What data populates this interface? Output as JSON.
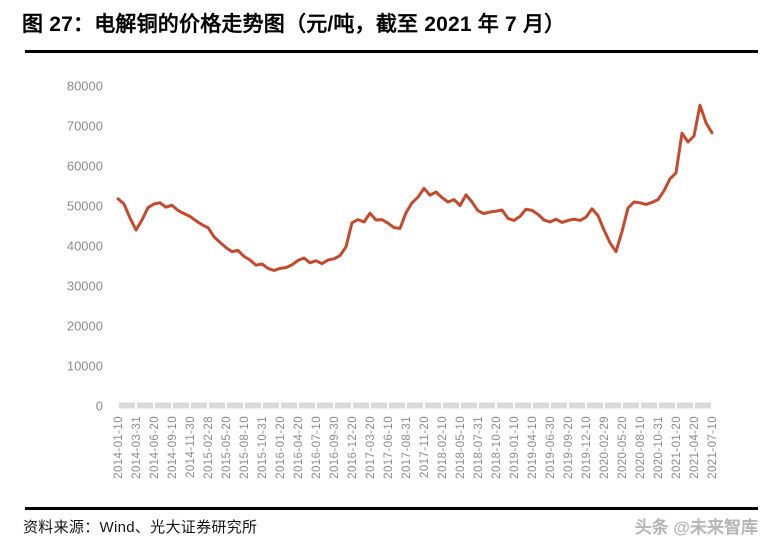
{
  "header": {
    "title": "图 27：电解铜的价格走势图（元/吨，截至 2021 年 7 月）"
  },
  "chart_data": {
    "type": "line",
    "title": "电解铜的价格走势图",
    "unit": "元/吨",
    "legend": "none",
    "grid": false,
    "ylim": [
      0,
      80000
    ],
    "y_ticks": [
      80000,
      70000,
      60000,
      50000,
      40000,
      30000,
      20000,
      10000,
      0
    ],
    "x_tick_labels": [
      "2014-01-10",
      "2014-03-31",
      "2014-06-20",
      "2014-09-10",
      "2014-11-30",
      "2015-02-28",
      "2015-05-20",
      "2015-08-10",
      "2015-10-31",
      "2016-01-20",
      "2016-04-20",
      "2016-07-10",
      "2016-09-30",
      "2016-12-20",
      "2017-03-20",
      "2017-06-10",
      "2017-08-31",
      "2017-11-20",
      "2018-02-10",
      "2018-05-10",
      "2018-07-31",
      "2018-10-20",
      "2019-01-10",
      "2019-04-10",
      "2019-06-30",
      "2019-09-20",
      "2019-12-10",
      "2020-02-29",
      "2020-05-20",
      "2020-08-10",
      "2020-10-31",
      "2021-01-20",
      "2021-04-20",
      "2021-07-10"
    ],
    "points_per_tick_interval": 3,
    "x_note": "values are evenly spaced in time from 2014-01-10 to 2021-07-10; every 3rd point aligns with an x tick label",
    "values": [
      51800,
      50500,
      47000,
      44000,
      46500,
      49600,
      50500,
      50800,
      49700,
      50200,
      48900,
      48100,
      47400,
      46300,
      45300,
      44600,
      42300,
      40900,
      39600,
      38600,
      38900,
      37400,
      36500,
      35200,
      35500,
      34400,
      33900,
      34400,
      34600,
      35300,
      36400,
      37000,
      35800,
      36300,
      35600,
      36500,
      36800,
      37600,
      39800,
      45800,
      46600,
      46000,
      48200,
      46500,
      46600,
      45700,
      44600,
      44400,
      48300,
      50800,
      52200,
      54400,
      52700,
      53500,
      52100,
      51000,
      51600,
      50100,
      52800,
      51000,
      48800,
      48100,
      48500,
      48700,
      49000,
      46900,
      46400,
      47400,
      49200,
      48900,
      47900,
      46500,
      46000,
      46700,
      45900,
      46400,
      46700,
      46400,
      47200,
      49300,
      47600,
      44000,
      40800,
      38600,
      43600,
      49500,
      51000,
      50800,
      50400,
      50900,
      51600,
      53800,
      56800,
      58300,
      68200,
      66000,
      67500,
      75200,
      70800,
      68300
    ],
    "line_color": "#c5492c",
    "axis_text_color": "#8c8c8c",
    "baseline_color": "#d9d9d9"
  },
  "footer": {
    "source_label": "资料来源：Wind、光大证券研究所",
    "watermark": "头条 @未来智库"
  }
}
